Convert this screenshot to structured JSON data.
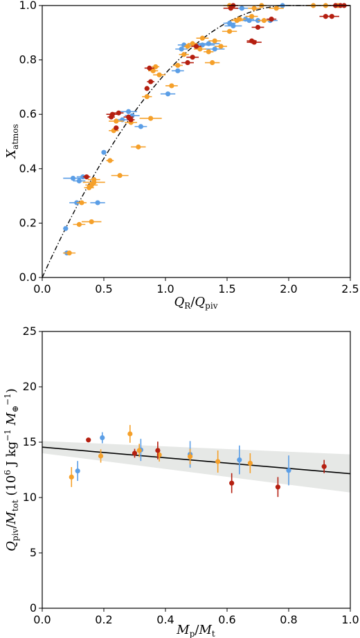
{
  "colors": {
    "blue": "#5b9ee6",
    "orange": "#f5a02a",
    "red": "#b51f10",
    "band": "#e6e8e6",
    "line": "#000000"
  },
  "chart_data": [
    {
      "type": "scatter",
      "xlabel_parts": {
        "main": "Q",
        "sub": "R",
        "slash": "/",
        "main2": "Q",
        "sub2": "piv"
      },
      "ylabel_parts": {
        "main": "X",
        "sub": "atmos"
      },
      "xlim": [
        0.0,
        2.5
      ],
      "ylim": [
        0.0,
        1.0
      ],
      "x_ticks": [
        "0.0",
        "0.5",
        "1.0",
        "1.5",
        "2.0",
        "2.5"
      ],
      "y_ticks": [
        "0.0",
        "0.2",
        "0.4",
        "0.6",
        "0.8",
        "1.0"
      ],
      "grid": false,
      "curve": {
        "style": "dash-dot",
        "form": "1 - (1 - x/2)^2",
        "x_end": 2.0
      },
      "series": [
        {
          "color": "blue",
          "points": [
            [
              0.19,
              0.18,
              0.02
            ],
            [
              0.2,
              0.09,
              0.03
            ],
            [
              0.25,
              0.365,
              0.08
            ],
            [
              0.3,
              0.355,
              0.05
            ],
            [
              0.28,
              0.275,
              0.06
            ],
            [
              0.45,
              0.275,
              0.06
            ],
            [
              0.33,
              0.37,
              0.05
            ],
            [
              0.5,
              0.46,
              0.02
            ],
            [
              0.65,
              0.58,
              0.06
            ],
            [
              0.7,
              0.61,
              0.07
            ],
            [
              0.8,
              0.555,
              0.05
            ],
            [
              0.73,
              0.595,
              0.06
            ],
            [
              1.02,
              0.675,
              0.06
            ],
            [
              1.1,
              0.76,
              0.05
            ],
            [
              1.13,
              0.84,
              0.05
            ],
            [
              1.15,
              0.855,
              0.05
            ],
            [
              1.3,
              0.855,
              0.1
            ],
            [
              1.35,
              0.86,
              0.09
            ],
            [
              1.4,
              0.84,
              0.08
            ],
            [
              1.52,
              0.935,
              0.05
            ],
            [
              1.55,
              0.925,
              0.07
            ],
            [
              1.65,
              0.95,
              0.07
            ],
            [
              1.68,
              0.945,
              0.06
            ],
            [
              1.75,
              0.945,
              0.07
            ],
            [
              1.85,
              0.945,
              0.06
            ],
            [
              1.62,
              0.99,
              0.05
            ],
            [
              1.95,
              1.0,
              0.05
            ]
          ]
        },
        {
          "color": "orange",
          "points": [
            [
              0.22,
              0.09,
              0.05
            ],
            [
              0.3,
              0.195,
              0.05
            ],
            [
              0.32,
              0.275,
              0.04
            ],
            [
              0.4,
              0.205,
              0.08
            ],
            [
              0.38,
              0.33,
              0.04
            ],
            [
              0.4,
              0.34,
              0.05
            ],
            [
              0.42,
              0.36,
              0.05
            ],
            [
              0.42,
              0.35,
              0.09
            ],
            [
              0.55,
              0.43,
              0.03
            ],
            [
              0.63,
              0.375,
              0.07
            ],
            [
              0.58,
              0.54,
              0.04
            ],
            [
              0.6,
              0.575,
              0.06
            ],
            [
              0.72,
              0.57,
              0.05
            ],
            [
              0.78,
              0.48,
              0.06
            ],
            [
              0.88,
              0.585,
              0.09
            ],
            [
              0.85,
              0.665,
              0.04
            ],
            [
              0.9,
              0.76,
              0.04
            ],
            [
              0.92,
              0.775,
              0.03
            ],
            [
              0.95,
              0.745,
              0.05
            ],
            [
              1.05,
              0.705,
              0.05
            ],
            [
              1.1,
              0.78,
              0.04
            ],
            [
              1.15,
              0.82,
              0.04
            ],
            [
              1.18,
              0.85,
              0.03
            ],
            [
              1.22,
              0.86,
              0.04
            ],
            [
              1.28,
              0.84,
              0.05
            ],
            [
              1.3,
              0.88,
              0.05
            ],
            [
              1.35,
              0.83,
              0.04
            ],
            [
              1.38,
              0.79,
              0.06
            ],
            [
              1.4,
              0.87,
              0.05
            ],
            [
              1.45,
              0.85,
              0.05
            ],
            [
              1.52,
              0.905,
              0.06
            ],
            [
              1.58,
              0.945,
              0.05
            ],
            [
              1.6,
              0.95,
              0.05
            ],
            [
              1.7,
              0.96,
              0.05
            ],
            [
              1.8,
              0.945,
              0.05
            ],
            [
              1.52,
              1.0,
              0.05
            ],
            [
              1.72,
              0.99,
              0.05
            ],
            [
              1.78,
              1.0,
              0.04
            ],
            [
              1.9,
              0.99,
              0.06
            ],
            [
              2.2,
              1.0,
              0.05
            ],
            [
              2.3,
              1.0,
              0.04
            ],
            [
              2.4,
              1.0,
              0.04
            ]
          ]
        },
        {
          "color": "red",
          "points": [
            [
              0.36,
              0.37,
              0.03
            ],
            [
              0.56,
              0.59,
              0.03
            ],
            [
              0.57,
              0.6,
              0.05
            ],
            [
              0.6,
              0.55,
              0.02
            ],
            [
              0.62,
              0.605,
              0.04
            ],
            [
              0.7,
              0.59,
              0.04
            ],
            [
              0.72,
              0.58,
              0.03
            ],
            [
              0.85,
              0.695,
              0.02
            ],
            [
              0.88,
              0.72,
              0.03
            ],
            [
              0.87,
              0.77,
              0.04
            ],
            [
              1.18,
              0.79,
              0.05
            ],
            [
              1.22,
              0.81,
              0.05
            ],
            [
              1.25,
              0.85,
              0.04
            ],
            [
              1.53,
              0.99,
              0.06
            ],
            [
              1.55,
              1.0,
              0.04
            ],
            [
              1.75,
              0.92,
              0.05
            ],
            [
              1.7,
              0.87,
              0.04
            ],
            [
              1.72,
              0.865,
              0.06
            ],
            [
              1.86,
              0.95,
              0.04
            ],
            [
              2.3,
              0.96,
              0.05
            ],
            [
              2.35,
              0.96,
              0.06
            ],
            [
              2.38,
              1.0,
              0.05
            ],
            [
              2.42,
              1.0,
              0.05
            ],
            [
              2.45,
              1.0,
              0.04
            ]
          ]
        }
      ]
    },
    {
      "type": "scatter",
      "xlabel_parts": {
        "main": "M",
        "sub": "p",
        "slash": "/",
        "main2": "M",
        "sub2": "t"
      },
      "ylabel_parts": {
        "q": "Q",
        "qsub": "piv",
        "slash": "/",
        "m": "M",
        "msub": "tot",
        "open": " (10",
        "exp": "6",
        "unit": " J kg",
        "exp2": "−1",
        "mend": " M",
        "msun": "⊕",
        "exp3": "−1",
        "close": ")"
      },
      "xlim": [
        0.0,
        1.0
      ],
      "ylim": [
        0,
        25
      ],
      "x_ticks": [
        "0.0",
        "0.2",
        "0.4",
        "0.6",
        "0.8",
        "1.0"
      ],
      "y_ticks": [
        "0",
        "5",
        "10",
        "15",
        "20",
        "25"
      ],
      "grid": false,
      "fit": {
        "x": [
          0.0,
          1.0
        ],
        "y": [
          14.55,
          12.15
        ],
        "band_upper": [
          15.1,
          13.9
        ],
        "band_lower": [
          14.0,
          10.45
        ]
      },
      "series": [
        {
          "color": "blue",
          "points": [
            [
              0.115,
              12.4,
              0.9
            ],
            [
              0.195,
              15.4,
              0.5
            ],
            [
              0.32,
              14.3,
              1.0
            ],
            [
              0.48,
              13.9,
              1.2
            ],
            [
              0.64,
              13.4,
              1.3
            ],
            [
              0.8,
              12.45,
              1.35
            ]
          ]
        },
        {
          "color": "orange",
          "points": [
            [
              0.095,
              11.85,
              0.9
            ],
            [
              0.19,
              13.75,
              0.6
            ],
            [
              0.285,
              15.75,
              0.8
            ],
            [
              0.315,
              14.25,
              0.6
            ],
            [
              0.38,
              13.85,
              0.6
            ],
            [
              0.48,
              13.7,
              0.7
            ],
            [
              0.57,
              13.25,
              1.0
            ],
            [
              0.675,
              13.1,
              0.9
            ]
          ]
        },
        {
          "color": "red",
          "points": [
            [
              0.15,
              15.2,
              0.2
            ],
            [
              0.3,
              14.0,
              0.4
            ],
            [
              0.375,
              14.25,
              0.8
            ],
            [
              0.615,
              11.3,
              0.9
            ],
            [
              0.765,
              10.95,
              0.9
            ],
            [
              0.915,
              12.8,
              0.6
            ]
          ]
        }
      ]
    }
  ]
}
